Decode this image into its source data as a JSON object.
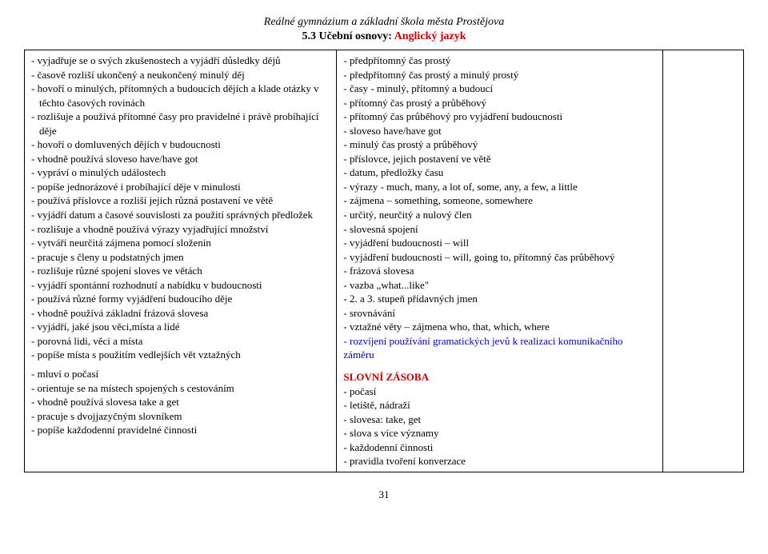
{
  "header": "Reálné gymnázium a základní škola města Prostějova",
  "subheader_black": "5.3 Učební osnovy: ",
  "subheader_red": "Anglický jazyk",
  "col1_items": [
    "- vyjadřuje se o svých zkušenostech a vyjádří důsledky dějů",
    "- časově rozliší ukončený a neukončený minulý děj",
    "- hovoří o minulých, přítomných a budoucích dějích a klade otázky v těchto časových rovinách",
    "- rozlišuje a používá přítomné časy pro pravidelné i právě probíhající děje",
    "- hovoří o domluvených dějích v budoucnosti",
    "- vhodně používá sloveso have/have got",
    "- vypráví o minulých událostech",
    "- popíše jednorázové i probíhající děje v minulosti",
    "- používá příslovce a rozliší jejich různá postavení ve větě",
    "- vyjádří datum a časové souvislosti za použití správných předložek",
    "- rozlišuje a vhodně používá výrazy vyjadřující množství",
    "- vytváří neurčitá zájmena pomocí složenin",
    "- pracuje s členy u podstatných jmen",
    "- rozlišuje různé spojení sloves ve větách",
    "- vyjádří spontánní rozhodnutí a nabídku v budoucnosti",
    "- používá různé formy vyjádření budoucího děje",
    "- vhodně používá základní frázová slovesa",
    "- vyjádří, jaké jsou věci,místa a lidé",
    "- porovná lidi, věci a místa",
    "- popíše místa s použitím vedlejších vět vztažných"
  ],
  "col1_items_b": [
    "- mluví o počasí",
    "- orientuje se na místech spojených s cestováním",
    "- vhodně používá slovesa take a get",
    "- pracuje s dvojjazyčným slovníkem",
    "- popíše každodenní pravidelné činnosti"
  ],
  "col2_items": [
    "- předpřítomný čas prostý",
    "- předpřítomný čas prostý a minulý prostý",
    "- časy - minulý, přítomný a budoucí",
    "- přítomný čas prostý a průběhový",
    "- přítomný čas průběhový pro vyjádření budoucnosti",
    "- sloveso have/have got",
    "- minulý čas prostý a průběhový",
    "- příslovce, jejich postavení ve větě",
    "- datum, předložky času",
    "- výrazy - much, many, a lot of, some, any, a few, a little",
    "- zájmena – something, someone, somewhere",
    "- určitý, neurčitý a nulový člen",
    "- slovesná spojení",
    "- vyjádření budoucnosti – will",
    "- vyjádření budoucnosti – will, going to, přítomný čas průběhový",
    "- frázová slovesa",
    "- vazba „what...like\"",
    "- 2. a 3. stupeň přídavných jmen",
    "- srovnávání",
    "- vztažné věty – zájmena who, that, which, where"
  ],
  "col2_blue": "   - rozvíjení používání gramatických  jevů  k realizaci komunikačního záměru",
  "col2_sec_title": "SLOVNÍ  ZÁSOBA",
  "col2_items_b": [
    "- počasí",
    "- letiště, nádraží",
    "- slovesa: take, get",
    "- slova s více významy",
    "- každodenní činnosti",
    "- pravidla tvoření konverzace"
  ],
  "pagenum": "31"
}
